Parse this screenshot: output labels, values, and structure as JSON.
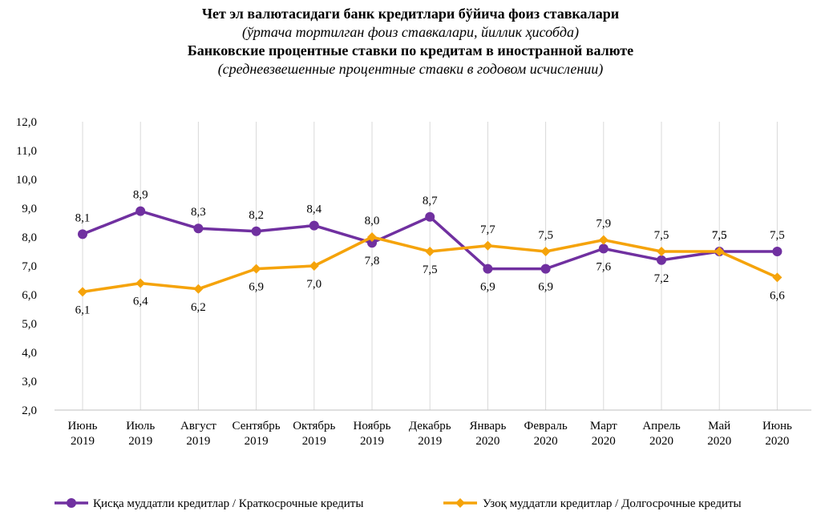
{
  "titles": {
    "line1": "Чет эл валютасидаги банк кредитлари бўйича фоиз ставкалари",
    "line2": "(ўртача тортилган фоиз ставкалари, йиллик ҳисобда)",
    "line3": "Банковские процентные ставки по кредитам в иностранной валюте",
    "line4": "(средневзвешенные процентные ставки в годовом исчислении)"
  },
  "chart_data": {
    "type": "line",
    "categories": [
      [
        "Июнь",
        "2019"
      ],
      [
        "Июль",
        "2019"
      ],
      [
        "Август",
        "2019"
      ],
      [
        "Сентябрь",
        "2019"
      ],
      [
        "Октябрь",
        "2019"
      ],
      [
        "Ноябрь",
        "2019"
      ],
      [
        "Декабрь",
        "2019"
      ],
      [
        "Январь",
        "2020"
      ],
      [
        "Февраль",
        "2020"
      ],
      [
        "Март",
        "2020"
      ],
      [
        "Апрель",
        "2020"
      ],
      [
        "Май",
        "2020"
      ],
      [
        "Июнь",
        "2020"
      ]
    ],
    "ylim": [
      2.0,
      12.0
    ],
    "ystep": 1.0,
    "yticks": [
      "2,0",
      "3,0",
      "4,0",
      "5,0",
      "6,0",
      "7,0",
      "8,0",
      "9,0",
      "10,0",
      "11,0",
      "12,0"
    ],
    "grid": "vertical",
    "legend_position": "bottom",
    "series": [
      {
        "name": "Қисқа муддатли кредитлар / Краткосрочные кредиты",
        "color": "#7030A0",
        "marker": "circle",
        "values": [
          8.1,
          8.9,
          8.3,
          8.2,
          8.4,
          7.8,
          8.7,
          6.9,
          6.9,
          7.6,
          7.2,
          7.5,
          7.5
        ],
        "labels": [
          "8,1",
          "8,9",
          "8,3",
          "8,2",
          "8,4",
          "7,8",
          "8,7",
          "6,9",
          "6,9",
          "7,6",
          "7,2",
          "7,5",
          "7,5"
        ],
        "label_side": [
          "above",
          "above",
          "above",
          "above",
          "above",
          "below",
          "above",
          "below",
          "below",
          "below",
          "below",
          "above",
          "above"
        ]
      },
      {
        "name": "Узоқ муддатли кредитлар / Долгосрочные кредиты",
        "color": "#F5A30A",
        "marker": "diamond",
        "values": [
          6.1,
          6.4,
          6.2,
          6.9,
          7.0,
          8.0,
          7.5,
          7.7,
          7.5,
          7.9,
          7.5,
          7.5,
          6.6
        ],
        "labels": [
          "6,1",
          "6,4",
          "6,2",
          "6,9",
          "7,0",
          "8,0",
          "7,5",
          "7,7",
          "7,5",
          "7,9",
          "7,5",
          "7,5",
          "6,6"
        ],
        "label_side": [
          "below",
          "below",
          "below",
          "below",
          "below",
          "above",
          "below",
          "above",
          "above",
          "above",
          "above",
          "above",
          "below"
        ]
      }
    ]
  }
}
